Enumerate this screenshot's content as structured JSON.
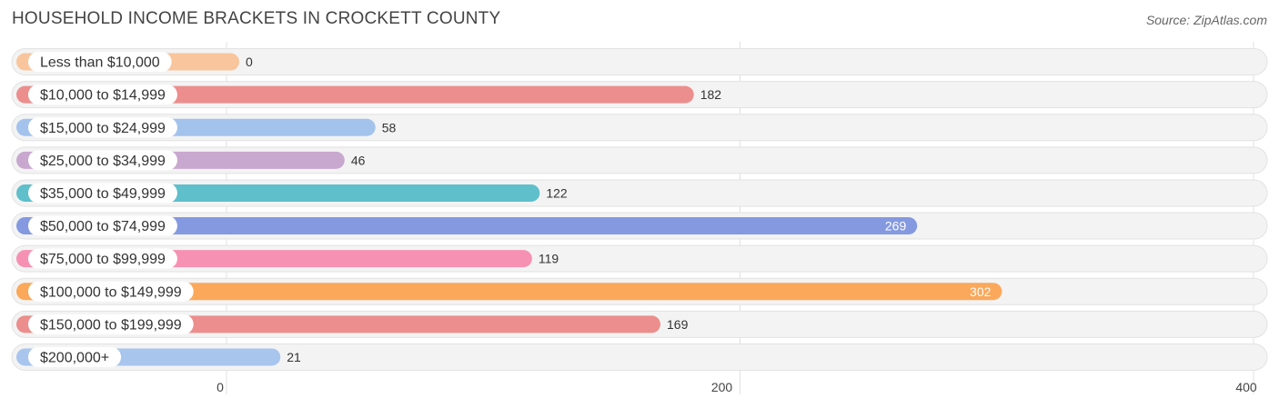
{
  "header": {
    "title": "HOUSEHOLD INCOME BRACKETS IN CROCKETT COUNTY",
    "source": "Source: ZipAtlas.com"
  },
  "chart_data": {
    "type": "bar",
    "orientation": "horizontal",
    "title": "HOUSEHOLD INCOME BRACKETS IN CROCKETT COUNTY",
    "categories": [
      "Less than $10,000",
      "$10,000 to $14,999",
      "$15,000 to $24,999",
      "$25,000 to $34,999",
      "$35,000 to $49,999",
      "$50,000 to $74,999",
      "$75,000 to $99,999",
      "$100,000 to $149,999",
      "$150,000 to $199,999",
      "$200,000+"
    ],
    "values": [
      0,
      182,
      58,
      46,
      122,
      269,
      119,
      302,
      169,
      21
    ],
    "colors": [
      "#f9c59c",
      "#ec8e8d",
      "#a3c3ec",
      "#c8a8cf",
      "#5fbfca",
      "#8599e0",
      "#f791b3",
      "#fba85b",
      "#ec8e8d",
      "#a8c5ee"
    ],
    "value_labels_inside": [
      false,
      false,
      false,
      false,
      false,
      true,
      false,
      true,
      false,
      false
    ],
    "xticks": [
      0,
      200,
      400
    ],
    "xlim": [
      0,
      400
    ],
    "grid": true
  }
}
